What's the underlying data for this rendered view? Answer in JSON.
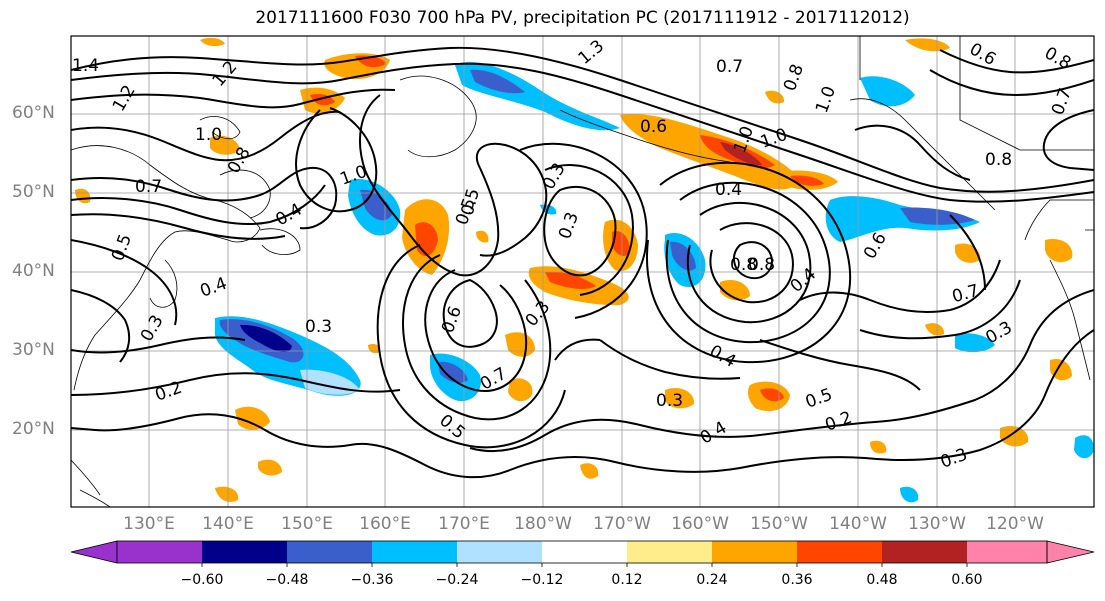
{
  "title": "2017111600 F030 700 hPa PV, precipitation PC (2017111912 - 2017112012)",
  "lat_labels": [
    "60°N",
    "50°N",
    "40°N",
    "30°N",
    "20°N"
  ],
  "lon_labels": [
    "130°E",
    "140°E",
    "150°E",
    "160°E",
    "170°E",
    "180°W",
    "170°W",
    "160°W",
    "150°W",
    "140°W",
    "130°W",
    "120°W"
  ],
  "contour_labels": [
    "1.4",
    "1.2",
    "1.2",
    "1.0",
    "0.8",
    "0.7",
    "0.5",
    "0.4",
    "1.0",
    "0.5",
    "0.3",
    "0.3",
    "0.4",
    "0.8",
    "1.0",
    "0.4",
    "0.8",
    "0.4",
    "0.6",
    "0.7",
    "0.3",
    "0.3",
    "0.2",
    "0.3",
    "0.6",
    "0.7",
    "0.5",
    "0.3",
    "0.5",
    "0.3",
    "0.4",
    "0.4",
    "0.5",
    "0.2",
    "0.3",
    "1.3",
    "0.7",
    "0.8",
    "1.0",
    "0.6",
    "0.8",
    "0.7",
    "1.0",
    "0.8",
    "0.6"
  ],
  "colorbar": {
    "ticks": [
      "−0.60",
      "−0.48",
      "−0.36",
      "−0.24",
      "−0.12",
      "0.12",
      "0.24",
      "0.36",
      "0.48",
      "0.60"
    ],
    "colors": [
      "#9932cc",
      "#00008b",
      "#3a5fcd",
      "#00bfff",
      "#b0e2ff",
      "#ffffff",
      "#ffec8b",
      "#ffa500",
      "#ff4500",
      "#b22222",
      "#ff82ab"
    ]
  }
}
